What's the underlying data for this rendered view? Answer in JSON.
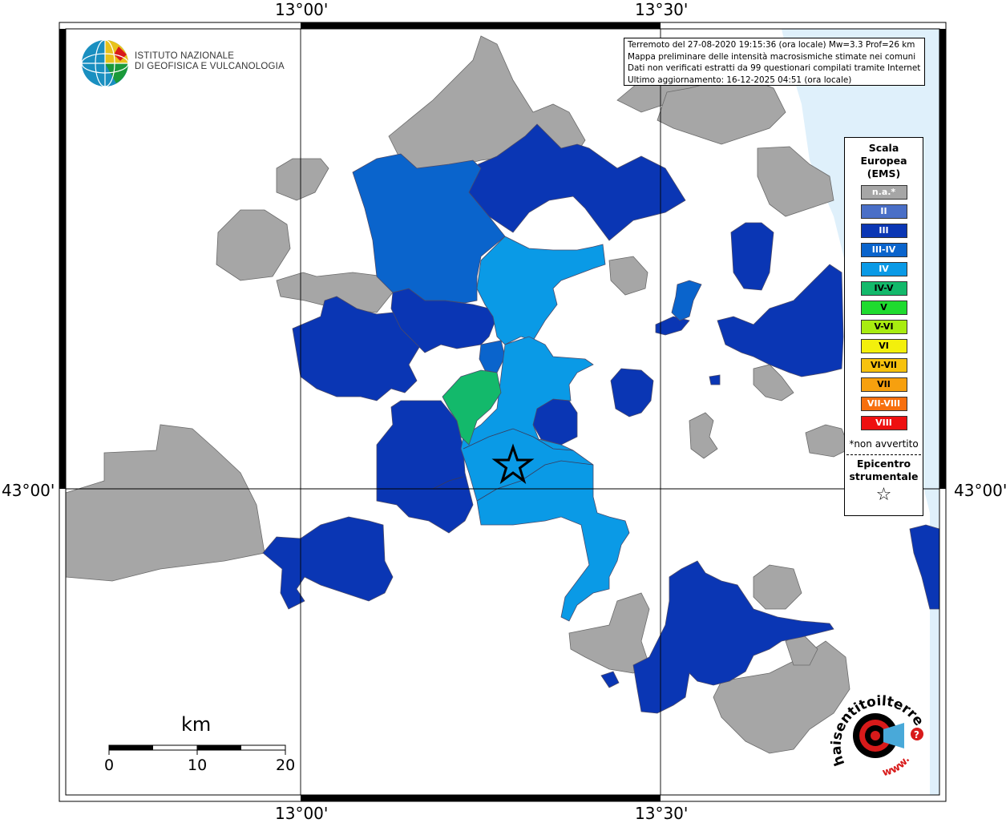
{
  "map": {
    "lon_labels_top": [
      "13°00'",
      "13°30'"
    ],
    "lon_labels_bottom": [
      "13°00'",
      "13°30'"
    ],
    "lat_labels": [
      "43°00'",
      "43°00'"
    ]
  },
  "info_box": {
    "lines": [
      "Terremoto del 27-08-2020 19:15:36 (ora locale) Mw=3.3 Prof=26 km",
      "Mappa preliminare delle intensità macrosismiche stimate nei comuni",
      "Dati non verificati estratti da 99 questionari compilati tramite Internet.",
      "Ultimo aggiornamento: 16-12-2025 04:51 (ora locale)"
    ]
  },
  "logo": {
    "line1": "ISTITUTO NAZIONALE",
    "line2": "DI GEOFISICA E VULCANOLOGIA"
  },
  "legend": {
    "title_lines": [
      "Scala",
      "Europea",
      "(EMS)"
    ],
    "items": [
      {
        "label": "n.a.*",
        "color": "#a6a6a6"
      },
      {
        "label": "II",
        "color": "#4a6fc7"
      },
      {
        "label": "III",
        "color": "#0a36b4"
      },
      {
        "label": "III-IV",
        "color": "#0a64cc"
      },
      {
        "label": "IV",
        "color": "#0a9ae6"
      },
      {
        "label": "IV-V",
        "color": "#13b96b"
      },
      {
        "label": "V",
        "color": "#1fdb2f"
      },
      {
        "label": "V-VI",
        "color": "#a8ec10"
      },
      {
        "label": "VI",
        "color": "#f3f00c"
      },
      {
        "label": "VI-VII",
        "color": "#f7c20e"
      },
      {
        "label": "VII",
        "color": "#f7a00e"
      },
      {
        "label": "VII-VIII",
        "color": "#f76f0e"
      },
      {
        "label": "VIII",
        "color": "#ee1010"
      }
    ],
    "note": "*non avvertito",
    "epicenter_lines": [
      "Epicentro",
      "strumentale"
    ]
  },
  "scale_bar": {
    "unit": "km",
    "ticks": [
      "0",
      "10",
      "20"
    ]
  },
  "watermark": {
    "text_main": "haisentitoilterremoto.it",
    "text_www": "www."
  },
  "colors": {
    "na": "#a6a6a6",
    "III": "#0a36b4",
    "III_IV": "#0a64cc",
    "IV": "#0a9ae6",
    "IV_V": "#13b96b",
    "sea": "#dff0fb"
  }
}
